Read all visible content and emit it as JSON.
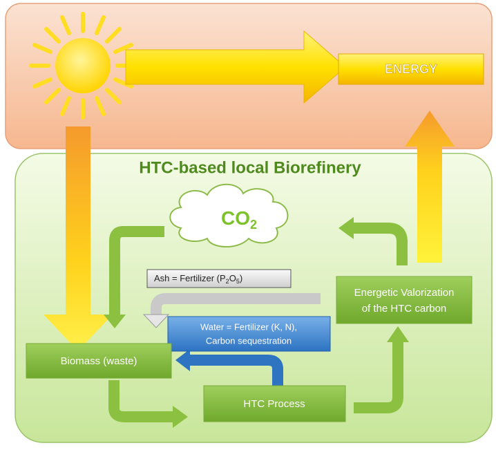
{
  "energy_label": "ENERGY",
  "region_title": "HTC-based local Biorefinery",
  "co2_label": [
    "CO",
    "2"
  ],
  "ash_label": [
    "Ash = Fertilizer (P",
    "2",
    "O",
    "5",
    ")"
  ],
  "energetic_label": [
    "Energetic Valorization",
    "of the HTC carbon"
  ],
  "water_label": [
    "Water = Fertilizer (K, N),",
    "Carbon sequestration"
  ],
  "biomass_label": "Biomass (waste)",
  "htc_label": "HTC Process"
}
